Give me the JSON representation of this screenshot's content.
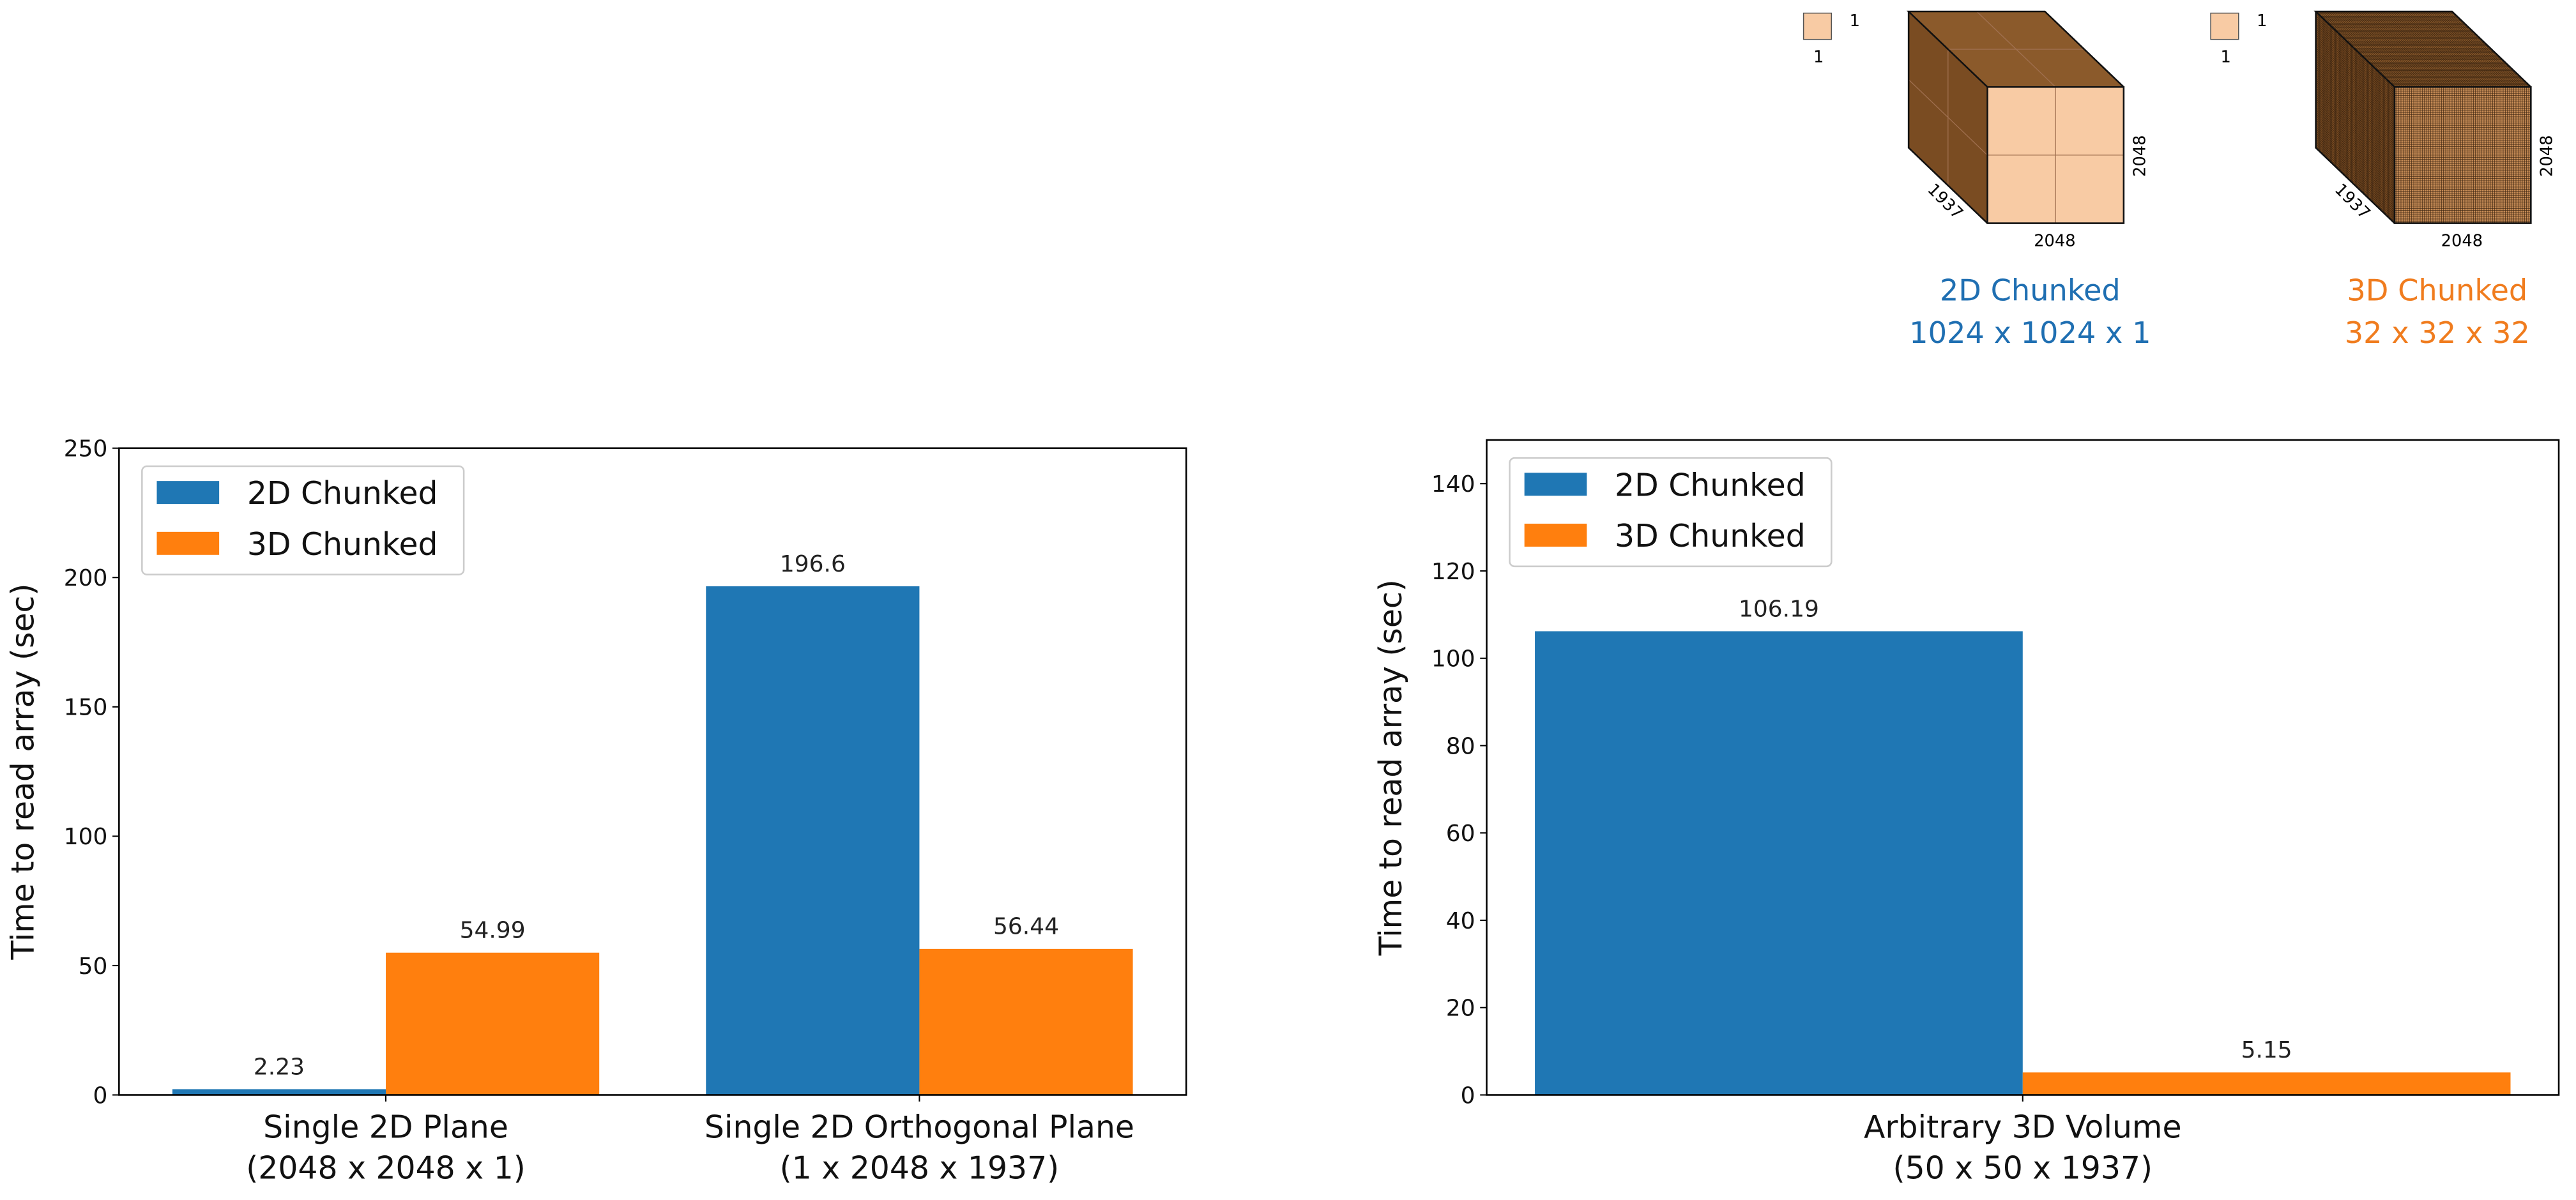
{
  "chart_data": [
    {
      "type": "bar",
      "ylabel": "Time to read array (sec)",
      "categories": [
        [
          "Single 2D Plane",
          "(2048 x 2048 x 1)"
        ],
        [
          "Single 2D Orthogonal Plane",
          "(1 x 2048 x 1937)"
        ]
      ],
      "series": [
        {
          "name": "2D Chunked",
          "color": "#1f77b4",
          "values": [
            2.23,
            196.6
          ]
        },
        {
          "name": "3D Chunked",
          "color": "#ff7f0e",
          "values": [
            54.99,
            56.44
          ]
        }
      ],
      "ylim": [
        0,
        250
      ],
      "yticks": [
        0,
        50,
        100,
        150,
        200,
        250
      ],
      "legend": "upper left"
    },
    {
      "type": "bar",
      "ylabel": "Time to read array (sec)",
      "categories": [
        [
          "Arbitrary 3D Volume",
          "(50 x 50 x 1937)"
        ]
      ],
      "series": [
        {
          "name": "2D Chunked",
          "color": "#1f77b4",
          "values": [
            106.19
          ]
        },
        {
          "name": "3D Chunked",
          "color": "#ff7f0e",
          "values": [
            5.15
          ]
        }
      ],
      "ylim": [
        0,
        150
      ],
      "yticks": [
        0,
        20,
        40,
        60,
        80,
        100,
        120,
        140
      ],
      "legend": "upper left"
    }
  ],
  "diagram": {
    "panels": [
      {
        "title": "2D Chunked",
        "subtitle": "1024 x 1024 x 1",
        "color": "#1f6fb2",
        "chunk_labels": [
          "1",
          "1"
        ],
        "dims": [
          "2048",
          "2048",
          "1937"
        ]
      },
      {
        "title": "3D Chunked",
        "subtitle": "32 x 32 x 32",
        "color": "#f07c1e",
        "chunk_labels": [
          "1",
          "1"
        ],
        "dims": [
          "2048",
          "2048",
          "1937"
        ]
      }
    ]
  }
}
